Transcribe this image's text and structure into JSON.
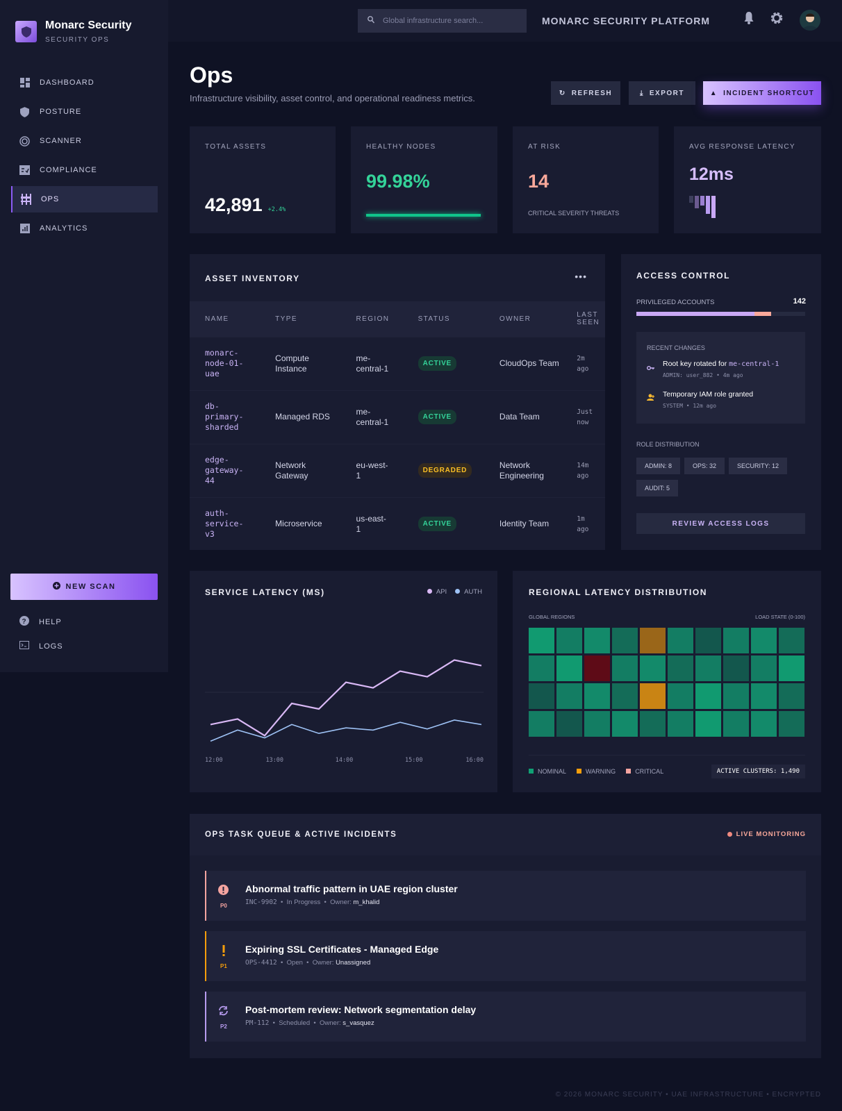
{
  "brand": {
    "name": "Monarc Security",
    "subtitle": "SECURITY OPS"
  },
  "sidebar": {
    "items": [
      {
        "label": "DASHBOARD",
        "icon": "dashboard-icon"
      },
      {
        "label": "POSTURE",
        "icon": "shield-icon"
      },
      {
        "label": "SCANNER",
        "icon": "radar-icon"
      },
      {
        "label": "COMPLIANCE",
        "icon": "checklist-icon"
      },
      {
        "label": "OPS",
        "icon": "sliders-icon",
        "active": true
      },
      {
        "label": "ANALYTICS",
        "icon": "bar-chart-icon"
      }
    ],
    "new_scan": "NEW SCAN",
    "help": "HELP",
    "logs": "LOGS"
  },
  "header": {
    "search_placeholder": "Global infrastructure search...",
    "platform": "MONARC SECURITY PLATFORM"
  },
  "page": {
    "title": "Ops",
    "subtitle": "Infrastructure visibility, asset control, and operational readiness metrics.",
    "refresh": "REFRESH",
    "export": "EXPORT",
    "incident": "INCIDENT SHORTCUT"
  },
  "kpis": {
    "total_assets": {
      "label": "TOTAL ASSETS",
      "value": "42,891",
      "delta": "+2.4%"
    },
    "healthy": {
      "label": "HEALTHY NODES",
      "value": "99.98%",
      "progress": 99.98
    },
    "at_risk": {
      "label": "AT RISK",
      "value": "14",
      "caption": "CRITICAL SEVERITY THREATS"
    },
    "latency": {
      "label": "AVG RESPONSE LATENCY",
      "value": "12ms",
      "sparkline": [
        30,
        55,
        45,
        80,
        100
      ]
    }
  },
  "inventory": {
    "title": "ASSET INVENTORY",
    "columns": [
      "NAME",
      "TYPE",
      "REGION",
      "STATUS",
      "OWNER",
      "LAST SEEN"
    ],
    "rows": [
      {
        "name": "monarc-node-01-uae",
        "type": "Compute Instance",
        "region": "me-central-1",
        "status": "ACTIVE",
        "owner": "CloudOps Team",
        "seen": "2m ago"
      },
      {
        "name": "db-primary-sharded",
        "type": "Managed RDS",
        "region": "me-central-1",
        "status": "ACTIVE",
        "owner": "Data Team",
        "seen": "Just now"
      },
      {
        "name": "edge-gateway-44",
        "type": "Network Gateway",
        "region": "eu-west-1",
        "status": "DEGRADED",
        "owner": "Network Engineering",
        "seen": "14m ago"
      },
      {
        "name": "auth-service-v3",
        "type": "Microservice",
        "region": "us-east-1",
        "status": "ACTIVE",
        "owner": "Identity Team",
        "seen": "1m ago"
      }
    ]
  },
  "access": {
    "title": "ACCESS CONTROL",
    "privileged_label": "PRIVILEGED ACCOUNTS",
    "privileged_count": "142",
    "bar_primary": 70,
    "bar_secondary": 10,
    "recent_title": "RECENT CHANGES",
    "changes": [
      {
        "text": "Root key rotated for ",
        "code": "me-central-1",
        "meta": "ADMIN: user_882 • 4m ago"
      },
      {
        "text": "Temporary IAM role granted",
        "code": "",
        "meta": "SYSTEM • 12m ago"
      }
    ],
    "role_title": "ROLE DISTRIBUTION",
    "roles": [
      "ADMIN: 8",
      "OPS: 32",
      "SECURITY: 12",
      "AUDIT: 5"
    ],
    "review": "REVIEW ACCESS LOGS"
  },
  "chart_data": [
    {
      "type": "line",
      "title": "SERVICE LATENCY (MS)",
      "x_ticks": [
        "12:00",
        "13:00",
        "14:00",
        "15:00",
        "16:00"
      ],
      "ylim": [
        0,
        100
      ],
      "grid": true,
      "legend": "top-right",
      "series": [
        {
          "name": "API",
          "color": "#d9b8f5",
          "values": [
            21,
            26,
            11,
            40,
            35,
            59,
            54,
            69,
            64,
            79,
            74
          ]
        },
        {
          "name": "AUTH",
          "color": "#9ec2f5",
          "values": [
            6,
            16,
            9,
            21,
            13,
            18,
            16,
            23,
            17,
            25,
            21
          ]
        }
      ]
    },
    {
      "type": "heatmap",
      "title": "REGIONAL LATENCY DISTRIBUTION",
      "left_label": "GLOBAL REGIONS",
      "right_label": "LOAD STATE (0-100)",
      "legend": [
        {
          "name": "NOMINAL",
          "color": "#10a074"
        },
        {
          "name": "WARNING",
          "color": "#f59e0b"
        },
        {
          "name": "CRITICAL",
          "color": "#f4a4a0"
        }
      ],
      "values": [
        [
          10,
          30,
          20,
          45,
          75,
          30,
          60,
          30,
          20,
          45
        ],
        [
          30,
          10,
          95,
          30,
          20,
          45,
          30,
          60,
          30,
          10
        ],
        [
          60,
          30,
          20,
          45,
          80,
          30,
          10,
          30,
          20,
          45
        ],
        [
          30,
          60,
          30,
          20,
          45,
          30,
          10,
          30,
          20,
          45
        ]
      ],
      "active_clusters": "ACTIVE CLUSTERS: 1,490"
    }
  ],
  "tasks": {
    "title": "OPS TASK QUEUE & ACTIVE INCIDENTS",
    "live": "LIVE MONITORING",
    "owner_label": "Owner:",
    "items": [
      {
        "title": "Abnormal traffic pattern in UAE region cluster",
        "id": "INC-9902",
        "status": "In Progress",
        "owner": "m_khalid",
        "priority": "P0",
        "color": "#f4a4a0",
        "icon": "alert-circle-icon"
      },
      {
        "title": "Expiring SSL Certificates - Managed Edge",
        "id": "OPS-4412",
        "status": "Open",
        "owner": "Unassigned",
        "priority": "P1",
        "color": "#f59e0b",
        "icon": "exclamation-icon"
      },
      {
        "title": "Post-mortem review: Network segmentation delay",
        "id": "PM-112",
        "status": "Scheduled",
        "owner": "s_vasquez",
        "priority": "P2",
        "color": "#b89cf0",
        "icon": "sync-icon"
      }
    ]
  },
  "footer": "© 2026 MONARC SECURITY • UAE INFRASTRUCTURE • ENCRYPTED"
}
